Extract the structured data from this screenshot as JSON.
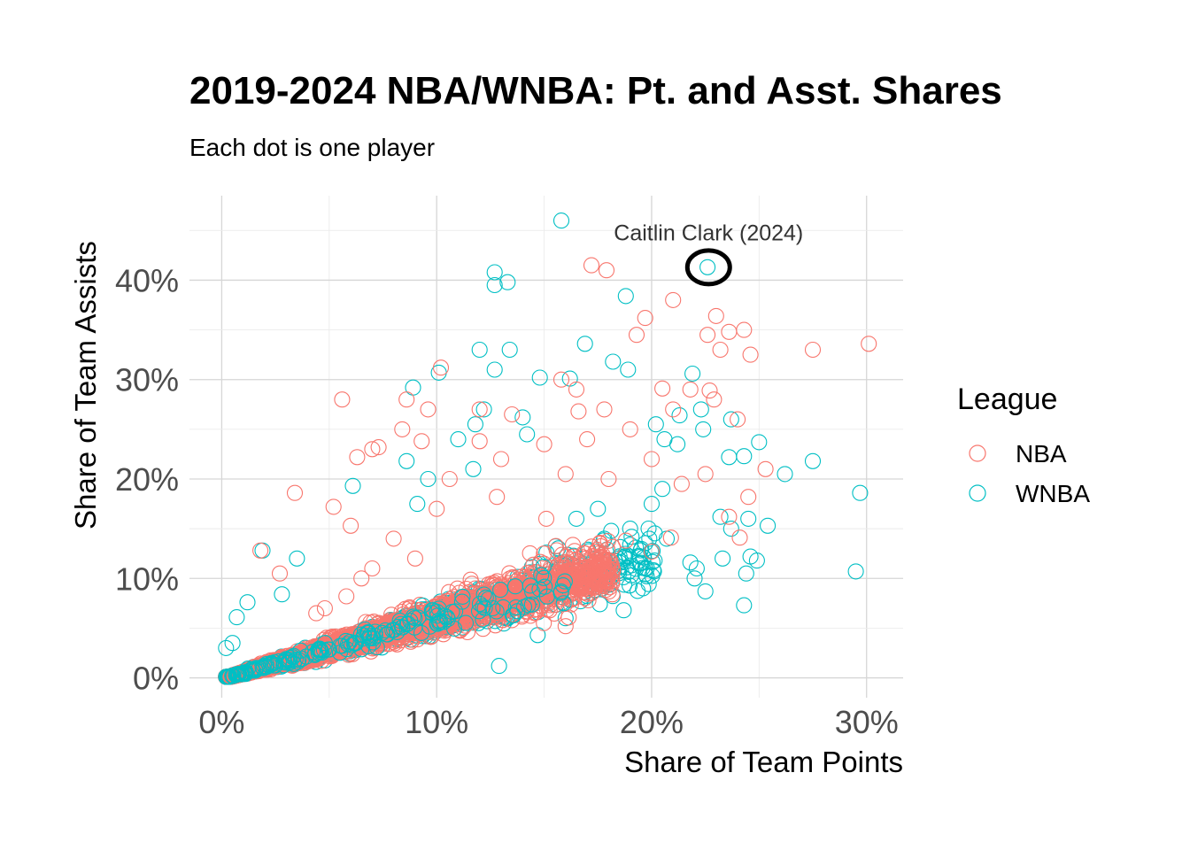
{
  "chart_data": {
    "type": "scatter",
    "title": "2019-2024 NBA/WNBA: Pt. and Asst. Shares",
    "subtitle": "Each dot is one player",
    "xlabel": "Share of Team Points",
    "ylabel": "Share of Team Assists",
    "xlim": [
      -0.015,
      0.317
    ],
    "ylim": [
      -0.02,
      0.485
    ],
    "x_ticks": [
      {
        "value": 0.0,
        "label": "0%"
      },
      {
        "value": 0.1,
        "label": "10%"
      },
      {
        "value": 0.2,
        "label": "20%"
      },
      {
        "value": 0.3,
        "label": "30%"
      }
    ],
    "y_ticks": [
      {
        "value": 0.0,
        "label": "0%"
      },
      {
        "value": 0.1,
        "label": "10%"
      },
      {
        "value": 0.2,
        "label": "20%"
      },
      {
        "value": 0.3,
        "label": "30%"
      },
      {
        "value": 0.4,
        "label": "40%"
      }
    ],
    "grid": true,
    "legend": {
      "title": "League",
      "position": "right",
      "entries": [
        {
          "name": "NBA",
          "color": "#F8766D"
        },
        {
          "name": "WNBA",
          "color": "#00BFC4"
        }
      ]
    },
    "series": [
      {
        "name": "NBA",
        "color": "#F8766D",
        "points": [
          [
            0.056,
            0.28
          ],
          [
            0.172,
            0.415
          ],
          [
            0.179,
            0.41
          ],
          [
            0.21,
            0.38
          ],
          [
            0.197,
            0.362
          ],
          [
            0.193,
            0.345
          ],
          [
            0.226,
            0.345
          ],
          [
            0.23,
            0.364
          ],
          [
            0.232,
            0.33
          ],
          [
            0.236,
            0.348
          ],
          [
            0.243,
            0.35
          ],
          [
            0.301,
            0.336
          ],
          [
            0.275,
            0.33
          ],
          [
            0.246,
            0.325
          ],
          [
            0.102,
            0.312
          ],
          [
            0.227,
            0.289
          ],
          [
            0.205,
            0.291
          ],
          [
            0.165,
            0.29
          ],
          [
            0.158,
            0.3
          ],
          [
            0.21,
            0.27
          ],
          [
            0.218,
            0.29
          ],
          [
            0.229,
            0.28
          ],
          [
            0.24,
            0.26
          ],
          [
            0.19,
            0.25
          ],
          [
            0.178,
            0.27
          ],
          [
            0.086,
            0.28
          ],
          [
            0.12,
            0.27
          ],
          [
            0.073,
            0.232
          ],
          [
            0.07,
            0.23
          ],
          [
            0.063,
            0.222
          ],
          [
            0.225,
            0.205
          ],
          [
            0.245,
            0.182
          ],
          [
            0.253,
            0.21
          ],
          [
            0.214,
            0.195
          ],
          [
            0.2,
            0.22
          ],
          [
            0.17,
            0.24
          ],
          [
            0.135,
            0.265
          ],
          [
            0.15,
            0.235
          ],
          [
            0.084,
            0.25
          ],
          [
            0.096,
            0.27
          ],
          [
            0.12,
            0.238
          ],
          [
            0.13,
            0.22
          ],
          [
            0.16,
            0.205
          ],
          [
            0.18,
            0.2
          ],
          [
            0.166,
            0.268
          ],
          [
            0.093,
            0.238
          ],
          [
            0.052,
            0.172
          ],
          [
            0.034,
            0.186
          ],
          [
            0.06,
            0.153
          ],
          [
            0.018,
            0.128
          ],
          [
            0.027,
            0.105
          ],
          [
            0.16,
            0.052
          ],
          [
            0.135,
            0.058
          ],
          [
            0.149,
            0.072
          ],
          [
            0.118,
            0.09
          ],
          [
            0.102,
            0.072
          ],
          [
            0.098,
            0.05
          ],
          [
            0.085,
            0.052
          ],
          [
            0.172,
            0.132
          ],
          [
            0.188,
            0.138
          ],
          [
            0.151,
            0.16
          ],
          [
            0.128,
            0.182
          ],
          [
            0.106,
            0.2
          ],
          [
            0.236,
            0.162
          ],
          [
            0.241,
            0.141
          ],
          [
            0.209,
            0.141
          ],
          [
            0.2,
            0.127
          ],
          [
            0.181,
            0.112
          ],
          [
            0.17,
            0.116
          ],
          [
            0.1,
            0.17
          ],
          [
            0.09,
            0.12
          ],
          [
            0.08,
            0.14
          ],
          [
            0.07,
            0.11
          ],
          [
            0.065,
            0.1
          ],
          [
            0.058,
            0.082
          ],
          [
            0.048,
            0.07
          ],
          [
            0.044,
            0.065
          ]
        ]
      },
      {
        "name": "WNBA",
        "color": "#00BFC4",
        "points": [
          [
            0.158,
            0.46
          ],
          [
            0.127,
            0.408
          ],
          [
            0.127,
            0.395
          ],
          [
            0.133,
            0.398
          ],
          [
            0.226,
            0.413
          ],
          [
            0.188,
            0.384
          ],
          [
            0.134,
            0.33
          ],
          [
            0.12,
            0.33
          ],
          [
            0.169,
            0.336
          ],
          [
            0.127,
            0.31
          ],
          [
            0.182,
            0.318
          ],
          [
            0.189,
            0.31
          ],
          [
            0.219,
            0.306
          ],
          [
            0.089,
            0.292
          ],
          [
            0.148,
            0.302
          ],
          [
            0.162,
            0.301
          ],
          [
            0.101,
            0.307
          ],
          [
            0.202,
            0.255
          ],
          [
            0.223,
            0.27
          ],
          [
            0.213,
            0.264
          ],
          [
            0.237,
            0.26
          ],
          [
            0.206,
            0.24
          ],
          [
            0.212,
            0.235
          ],
          [
            0.224,
            0.25
          ],
          [
            0.25,
            0.237
          ],
          [
            0.236,
            0.222
          ],
          [
            0.243,
            0.223
          ],
          [
            0.262,
            0.205
          ],
          [
            0.275,
            0.218
          ],
          [
            0.297,
            0.186
          ],
          [
            0.295,
            0.107
          ],
          [
            0.254,
            0.153
          ],
          [
            0.245,
            0.16
          ],
          [
            0.246,
            0.122
          ],
          [
            0.249,
            0.118
          ],
          [
            0.244,
            0.105
          ],
          [
            0.243,
            0.073
          ],
          [
            0.225,
            0.087
          ],
          [
            0.221,
            0.11
          ],
          [
            0.218,
            0.116
          ],
          [
            0.22,
            0.1
          ],
          [
            0.207,
            0.14
          ],
          [
            0.196,
            0.09
          ],
          [
            0.187,
            0.068
          ],
          [
            0.197,
            0.11
          ],
          [
            0.237,
            0.15
          ],
          [
            0.232,
            0.162
          ],
          [
            0.233,
            0.12
          ],
          [
            0.129,
            0.012
          ],
          [
            0.16,
            0.06
          ],
          [
            0.147,
            0.043
          ],
          [
            0.122,
            0.27
          ],
          [
            0.118,
            0.255
          ],
          [
            0.14,
            0.262
          ],
          [
            0.142,
            0.245
          ],
          [
            0.11,
            0.24
          ],
          [
            0.117,
            0.21
          ],
          [
            0.086,
            0.218
          ],
          [
            0.061,
            0.193
          ],
          [
            0.091,
            0.175
          ],
          [
            0.096,
            0.2
          ],
          [
            0.019,
            0.128
          ],
          [
            0.035,
            0.12
          ],
          [
            0.028,
            0.084
          ],
          [
            0.012,
            0.076
          ],
          [
            0.007,
            0.061
          ],
          [
            0.002,
            0.03
          ],
          [
            0.005,
            0.035
          ],
          [
            0.178,
            0.14
          ],
          [
            0.19,
            0.15
          ],
          [
            0.165,
            0.16
          ],
          [
            0.175,
            0.17
          ],
          [
            0.2,
            0.175
          ],
          [
            0.205,
            0.19
          ],
          [
            0.17,
            0.09
          ]
        ]
      }
    ],
    "annotation": {
      "label": "Caitlin Clark (2024)",
      "x": 0.2265,
      "y": 0.413,
      "label_x": 0.2265,
      "label_y": 0.448
    }
  }
}
